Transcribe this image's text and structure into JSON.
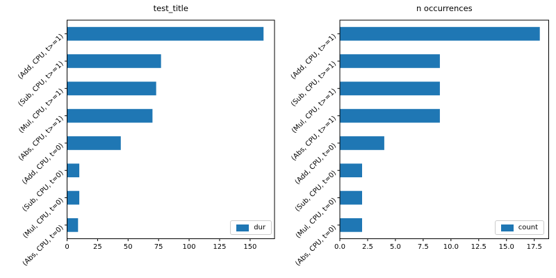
{
  "figure": {
    "background": "#ffffff"
  },
  "colors": {
    "bar": "#1f77b4",
    "spine": "#000000",
    "text": "#000000",
    "legend_edge": "#cccccc"
  },
  "chart_data": [
    {
      "type": "bar",
      "orientation": "horizontal",
      "title": "test_title",
      "legend": {
        "label": "dur",
        "position": "lower right"
      },
      "categories": [
        "(Add, CPU, t>=1)",
        "(Sub, CPU, t>=1)",
        "(Mul, CPU, t>=1)",
        "(Abs, CPU, t>=1)",
        "(Add, CPU, t=0)",
        "(Sub, CPU, t=0)",
        "(Mul, CPU, t=0)",
        "(Abs, CPU, t=0)"
      ],
      "values": [
        161,
        77,
        73,
        70,
        44,
        10,
        10,
        9
      ],
      "xlabel": "",
      "ylabel": "",
      "xlim": [
        0,
        170
      ],
      "xticks": [
        0,
        25,
        50,
        75,
        100,
        125,
        150
      ],
      "xtick_labels": [
        "0",
        "25",
        "50",
        "75",
        "100",
        "125",
        "150"
      ],
      "ytick_rotation_deg": 45,
      "grid": false
    },
    {
      "type": "bar",
      "orientation": "horizontal",
      "title": "n occurrences",
      "legend": {
        "label": "count",
        "position": "lower right"
      },
      "categories": [
        "(Add, CPU, t>=1)",
        "(Sub, CPU, t>=1)",
        "(Mul, CPU, t>=1)",
        "(Abs, CPU, t>=1)",
        "(Add, CPU, t=0)",
        "(Sub, CPU, t=0)",
        "(Mul, CPU, t=0)",
        "(Abs, CPU, t=0)"
      ],
      "values": [
        18,
        9,
        9,
        9,
        4,
        2,
        2,
        2
      ],
      "xlabel": "",
      "ylabel": "",
      "xlim": [
        0,
        18.8
      ],
      "xticks": [
        0,
        2.5,
        5,
        7.5,
        10,
        12.5,
        15,
        17.5
      ],
      "xtick_labels": [
        "0.0",
        "2.5",
        "5.0",
        "7.5",
        "10.0",
        "12.5",
        "15.0",
        "17.5"
      ],
      "ytick_rotation_deg": 45,
      "grid": false
    }
  ]
}
